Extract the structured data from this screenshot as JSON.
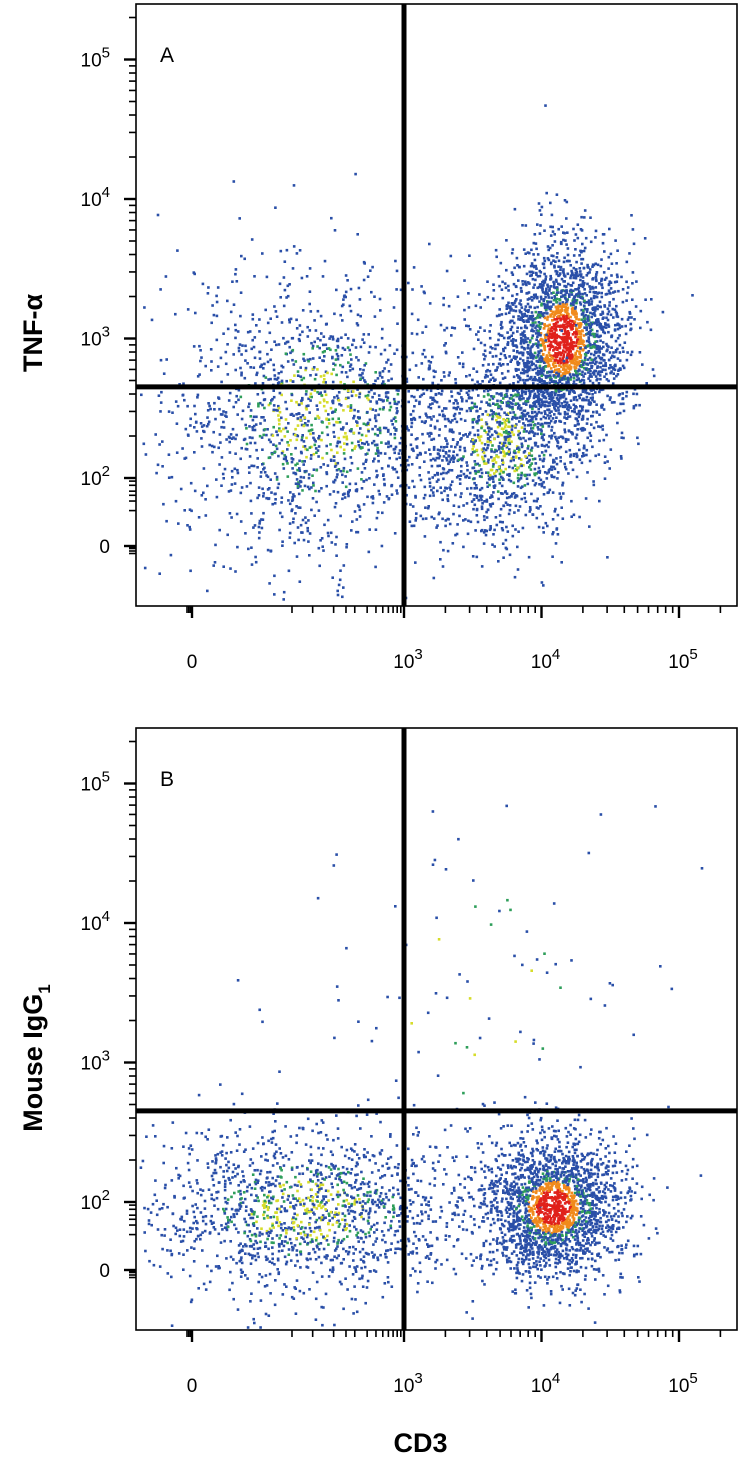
{
  "chart_data": [
    {
      "type": "scatter",
      "panel_label": "A",
      "xlabel": "",
      "ylabel": "TNF-α",
      "x_scale": "biexponential",
      "y_scale": "biexponential",
      "x_ticks": [
        "0",
        "10^3",
        "10^4",
        "10^5"
      ],
      "y_ticks": [
        "0",
        "10^2",
        "10^3",
        "10^4",
        "10^5"
      ],
      "quadrant_gate": {
        "x": 1000,
        "y": 450
      },
      "density_coloring": true,
      "density_colors": [
        "#2a4fa8",
        "#2e9e5a",
        "#d6dc2a",
        "#f08a1c",
        "#e0211b"
      ],
      "populations": [
        {
          "name": "",
          "center_x": 60,
          "center_y": 280,
          "spread_x": 0.55,
          "spread_y": 0.5,
          "count": 1600
        },
        {
          "name": "",
          "center_x": 14000,
          "center_y": 1000,
          "spread_x": 0.22,
          "spread_y": 0.35,
          "count": 2300
        },
        {
          "name": "",
          "center_x": 5000,
          "center_y": 180,
          "spread_x": 0.3,
          "spread_y": 0.35,
          "count": 1100
        }
      ]
    },
    {
      "type": "scatter",
      "panel_label": "B",
      "xlabel": "CD3",
      "ylabel": "Mouse IgG",
      "ylabel_subscript": "1",
      "x_scale": "biexponential",
      "y_scale": "biexponential",
      "x_ticks": [
        "0",
        "10^3",
        "10^4",
        "10^5"
      ],
      "y_ticks": [
        "0",
        "10^2",
        "10^3",
        "10^4",
        "10^5"
      ],
      "quadrant_gate": {
        "x": 1000,
        "y": 450
      },
      "density_coloring": true,
      "density_colors": [
        "#2a4fa8",
        "#2e9e5a",
        "#d6dc2a",
        "#f08a1c",
        "#e0211b"
      ],
      "populations": [
        {
          "name": "",
          "center_x": 40,
          "center_y": 60,
          "spread_x": 0.6,
          "spread_y": 0.3,
          "count": 1500
        },
        {
          "name": "",
          "center_x": 12000,
          "center_y": 75,
          "spread_x": 0.25,
          "spread_y": 0.25,
          "count": 2100
        },
        {
          "name": "",
          "center_x": 3000,
          "center_y": 3000,
          "spread_x": 0.7,
          "spread_y": 0.7,
          "count": 90
        }
      ]
    }
  ]
}
